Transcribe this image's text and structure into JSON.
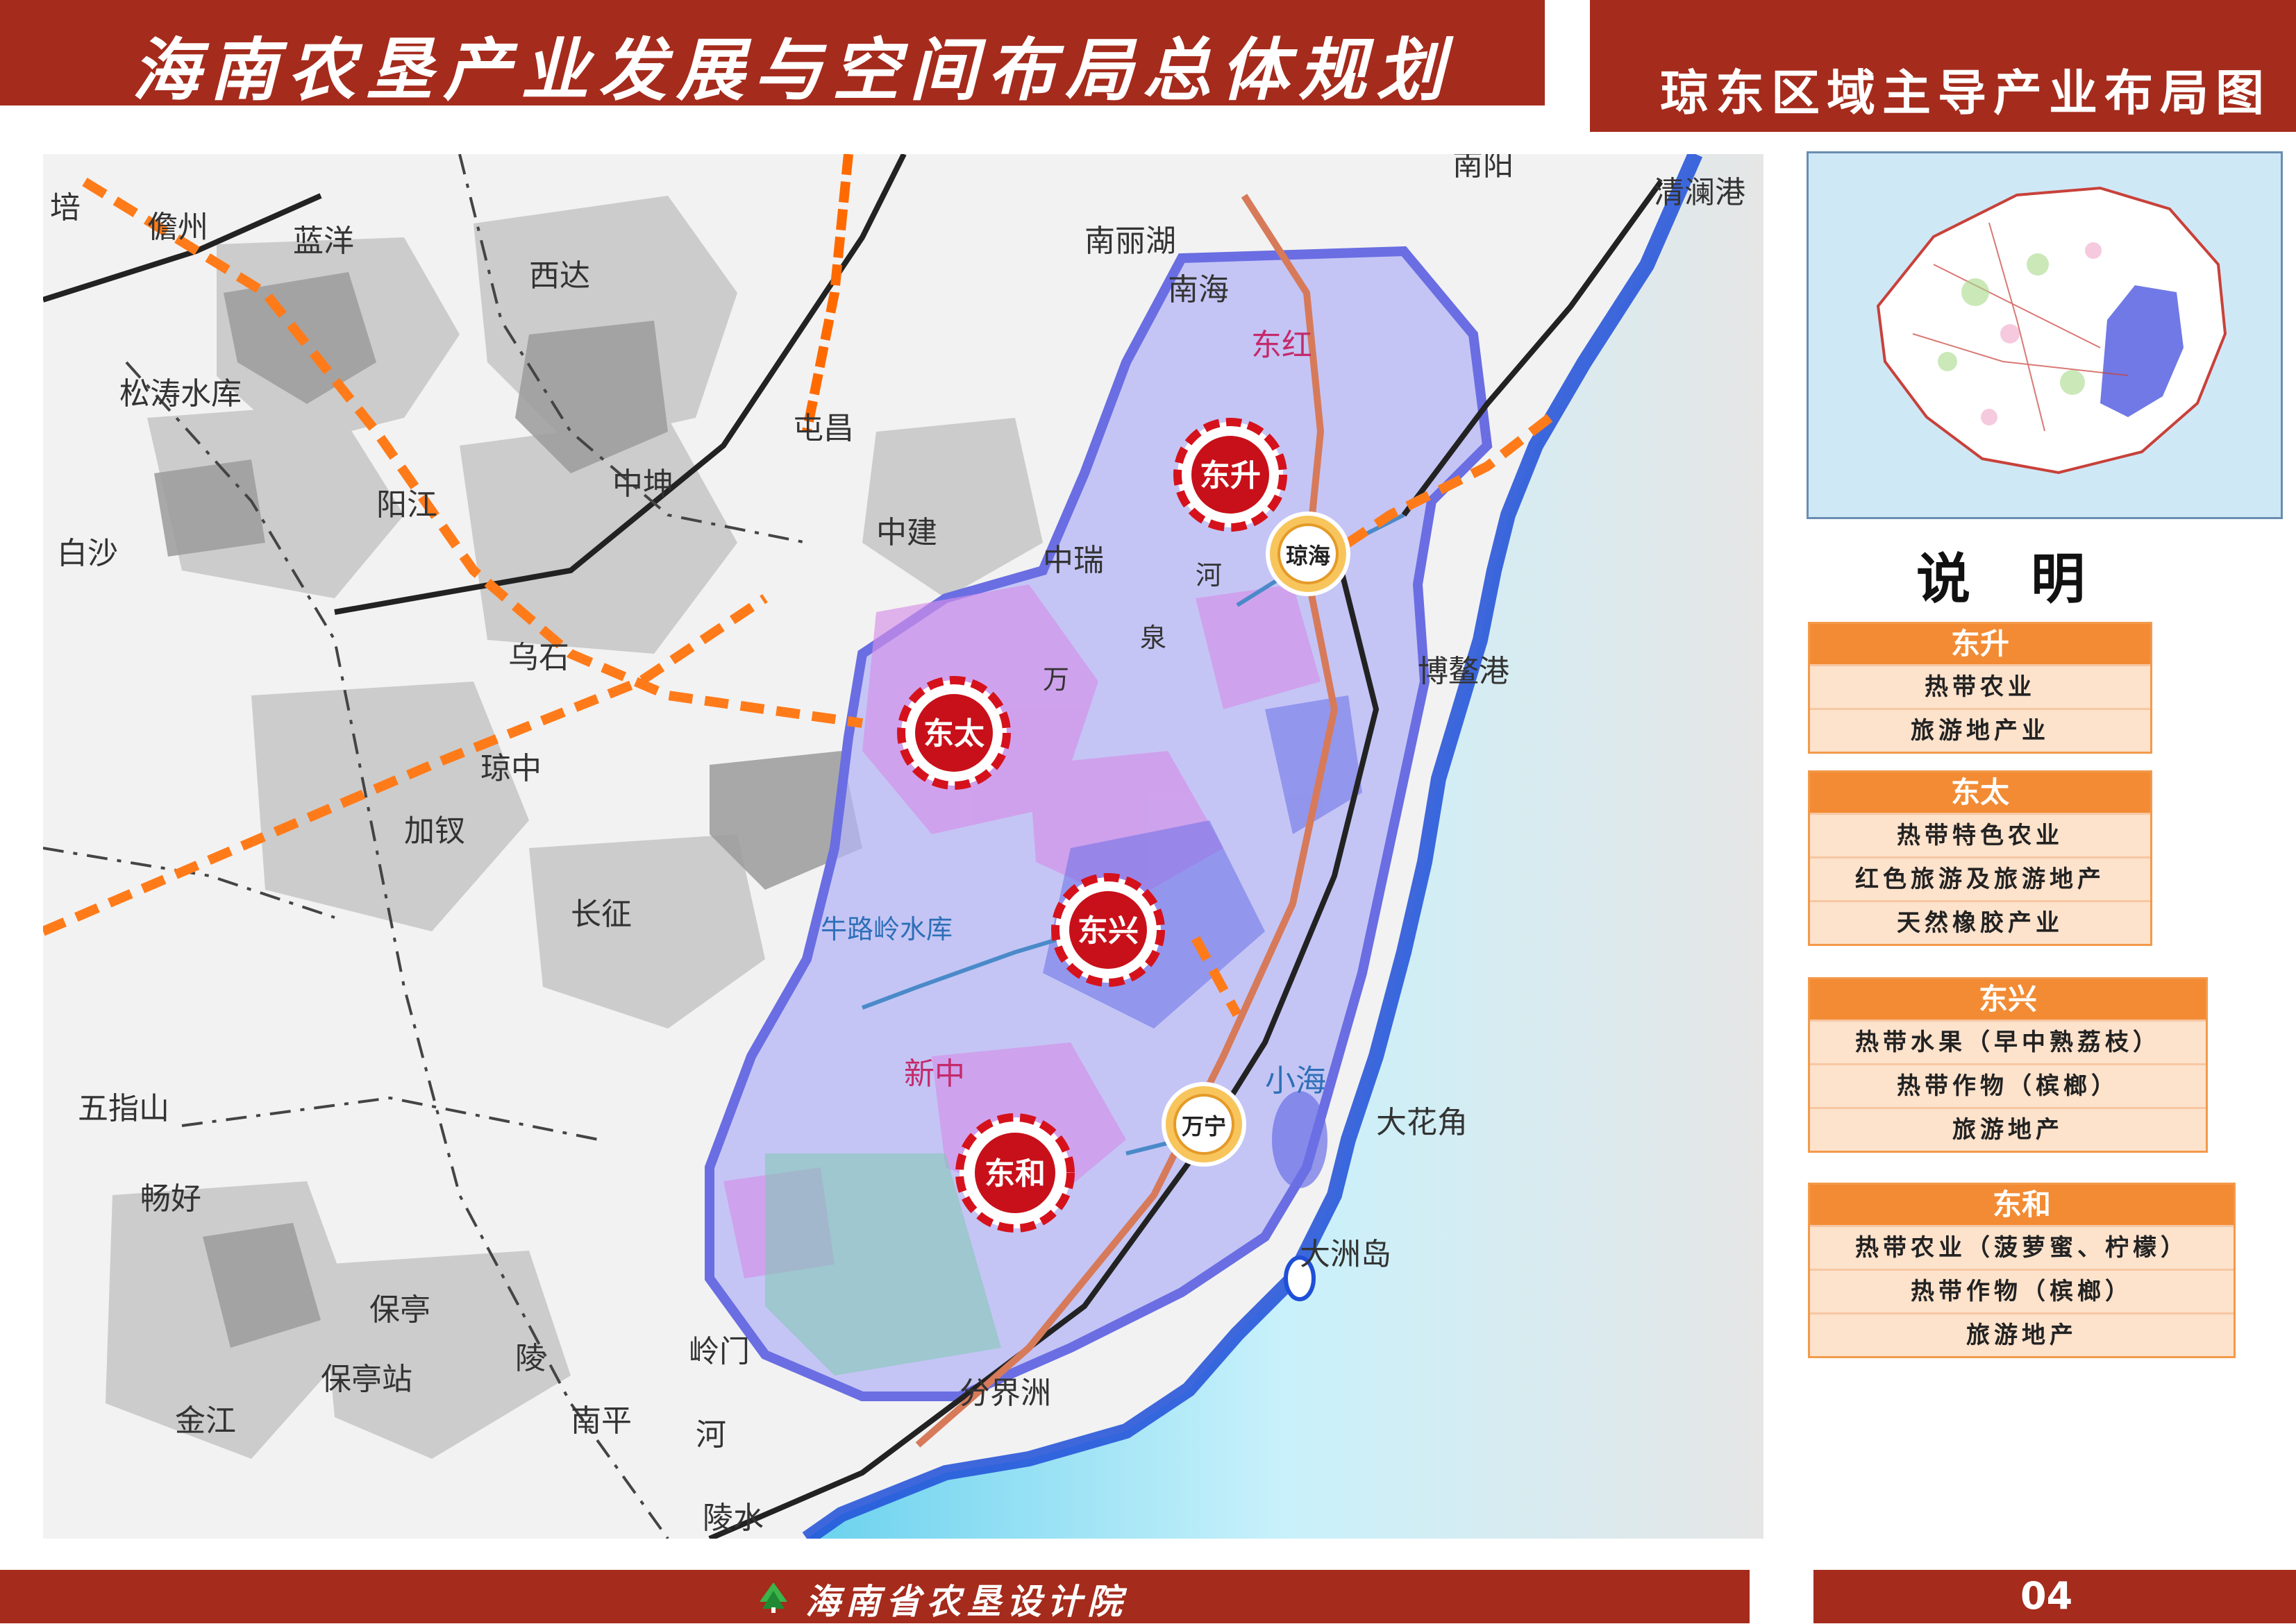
{
  "header": {
    "title": "海南农垦产业发展与空间布局总体规划",
    "subtitle": "琼东区域主导产业布局图"
  },
  "map": {
    "sea_color": "#7fd8f0",
    "zone_color": "#b7b8f5",
    "place_labels": [
      {
        "id": "peilabel",
        "text": "培"
      },
      {
        "id": "xinzhou",
        "text": "儋州"
      },
      {
        "id": "lanyang",
        "text": "蓝洋"
      },
      {
        "id": "xida",
        "text": "西达"
      },
      {
        "id": "songtao",
        "text": "松涛水库"
      },
      {
        "id": "yangjiang",
        "text": "阳江"
      },
      {
        "id": "baisha",
        "text": "白沙"
      },
      {
        "id": "zhongkun",
        "text": "中坤"
      },
      {
        "id": "tunchang",
        "text": "屯昌"
      },
      {
        "id": "zhongjian",
        "text": "中建"
      },
      {
        "id": "zhongrui",
        "text": "中瑞"
      },
      {
        "id": "nanlihu",
        "text": "南丽湖"
      },
      {
        "id": "nanhai",
        "text": "南海"
      },
      {
        "id": "donghong",
        "text": "东红"
      },
      {
        "id": "nanyang",
        "text": "南阳"
      },
      {
        "id": "qinglangang",
        "text": "清澜港"
      },
      {
        "id": "wushi",
        "text": "乌石"
      },
      {
        "id": "qiongzhong",
        "text": "琼中"
      },
      {
        "id": "jiacha",
        "text": "加钗"
      },
      {
        "id": "changzheng",
        "text": "长征"
      },
      {
        "id": "niululing",
        "text": "牛路岭水库"
      },
      {
        "id": "xinzhong",
        "text": "新中"
      },
      {
        "id": "wuzhishan",
        "text": "五指山"
      },
      {
        "id": "changhao",
        "text": "畅好"
      },
      {
        "id": "baoting",
        "text": "保亭"
      },
      {
        "id": "baotingzhan",
        "text": "保亭站"
      },
      {
        "id": "jinjiang",
        "text": "金江"
      },
      {
        "id": "nanping",
        "text": "南平"
      },
      {
        "id": "ling",
        "text": "陵"
      },
      {
        "id": "lingmen",
        "text": "岭门"
      },
      {
        "id": "he",
        "text": "河"
      },
      {
        "id": "lingshui",
        "text": "陵水"
      },
      {
        "id": "fenjiezhou",
        "text": "分界洲"
      },
      {
        "id": "dazhoudao",
        "text": "大洲岛"
      },
      {
        "id": "dahuajiao",
        "text": "大花角"
      },
      {
        "id": "xiaohai",
        "text": "小海"
      },
      {
        "id": "boaogang",
        "text": "博鳌港"
      },
      {
        "id": "wan",
        "text": "万"
      },
      {
        "id": "quan",
        "text": "泉"
      },
      {
        "id": "he2",
        "text": "河"
      }
    ],
    "farm_markers": [
      {
        "id": "dongsheng",
        "text": "东升"
      },
      {
        "id": "dongtai",
        "text": "东太"
      },
      {
        "id": "dongxing",
        "text": "东兴"
      },
      {
        "id": "donghe",
        "text": "东和"
      }
    ],
    "city_markers": [
      {
        "id": "qionghai",
        "text": "琼海"
      },
      {
        "id": "wanning",
        "text": "万宁"
      }
    ]
  },
  "legend": {
    "heading": "说 明",
    "groups": [
      {
        "title": "东升",
        "items": [
          "热带农业",
          "旅游地产业"
        ]
      },
      {
        "title": "东太",
        "items": [
          "热带特色农业",
          "红色旅游及旅游地产",
          "天然橡胶产业"
        ]
      },
      {
        "title": "东兴",
        "items": [
          "热带水果（早中熟荔枝）",
          "热带作物（槟榔）",
          "旅游地产"
        ]
      },
      {
        "title": "东和",
        "items": [
          "热带农业（菠萝蜜、柠檬）",
          "热带作物（槟榔）",
          "旅游地产"
        ]
      }
    ]
  },
  "footer": {
    "org": "海南省农垦设计院",
    "page": "04"
  },
  "colors": {
    "header_bar": "#a52b1c",
    "legend_header": "#f28b34",
    "legend_row": "#fde2cc",
    "farm_marker": "#d5121c",
    "city_marker": "#f2b33d"
  }
}
